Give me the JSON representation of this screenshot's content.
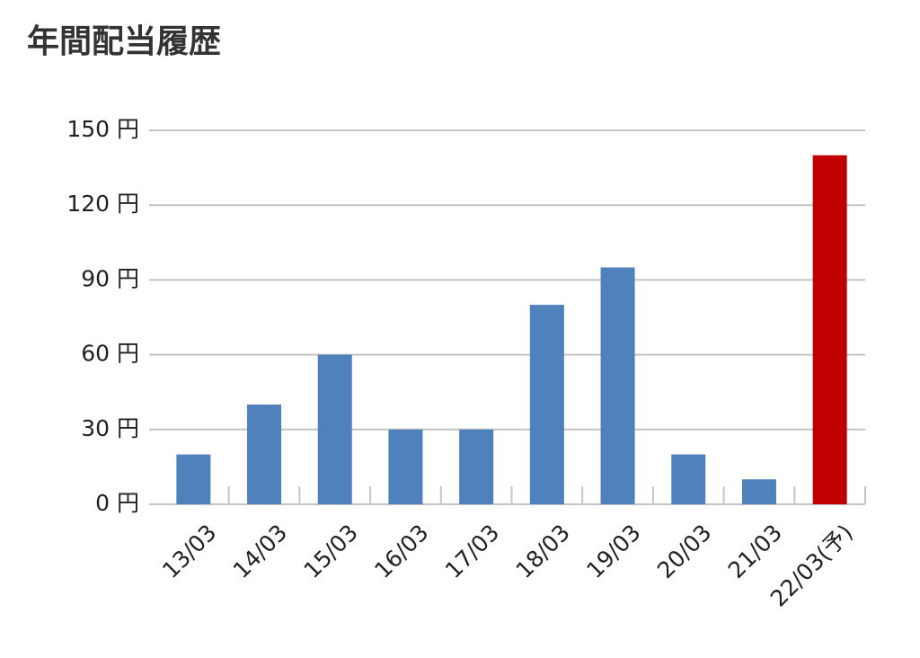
{
  "chart_data": {
    "type": "bar",
    "title": "年間配当履歴",
    "categories": [
      "13/03",
      "14/03",
      "15/03",
      "16/03",
      "17/03",
      "18/03",
      "19/03",
      "20/03",
      "21/03",
      "22/03(予)"
    ],
    "values": [
      20,
      40,
      60,
      30,
      30,
      80,
      95,
      20,
      10,
      140
    ],
    "colors": [
      "#4f81bd",
      "#4f81bd",
      "#4f81bd",
      "#4f81bd",
      "#4f81bd",
      "#4f81bd",
      "#4f81bd",
      "#4f81bd",
      "#4f81bd",
      "#c00000"
    ],
    "ylim": [
      0,
      150
    ],
    "yticks": [
      {
        "value": 0,
        "label": "0 円"
      },
      {
        "value": 30,
        "label": "30 円"
      },
      {
        "value": 60,
        "label": "60 円"
      },
      {
        "value": 90,
        "label": "90 円"
      },
      {
        "value": 120,
        "label": "120 円"
      },
      {
        "value": 150,
        "label": "150 円"
      }
    ],
    "grid": true
  }
}
